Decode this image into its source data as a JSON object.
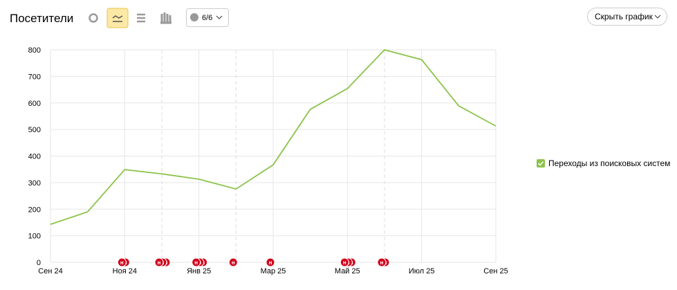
{
  "header": {
    "title": "Посетители",
    "comments_button": "6/6",
    "hide_button": "Скрыть график"
  },
  "chart_data": {
    "type": "line",
    "categories": [
      "Сен 24",
      null,
      "Ноя 24",
      null,
      "Янв 25",
      null,
      "Мар 25",
      null,
      "Май 25",
      null,
      "Июл 25",
      null,
      "Сен 25"
    ],
    "series": [
      {
        "name": "Переходы из поисковых систем",
        "color": "#8bc34a",
        "values": [
          143,
          190,
          349,
          333,
          313,
          276,
          367,
          576,
          654,
          800,
          763,
          589,
          513
        ]
      }
    ],
    "ylim": [
      0,
      800
    ],
    "yticks": [
      0,
      100,
      200,
      300,
      400,
      500,
      600,
      700,
      800
    ],
    "grid": true,
    "annotation_label": "н",
    "annotation_counts": [
      0,
      0,
      2,
      3,
      3,
      1,
      1,
      0,
      3,
      2,
      0,
      0,
      0
    ]
  }
}
